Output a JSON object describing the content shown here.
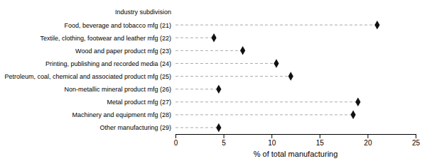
{
  "chart_data": {
    "type": "lollipop",
    "orientation": "horizontal",
    "categories": [
      "Industry subdivision",
      "Food, beverage and tobacco mfg (21)",
      "Textile, clothing, footwear and leather mfg (22)",
      "Wood and paper product mfg (23)",
      "Printing, publishing and recorded media (24)",
      "Petroleum, coal, chemical and associated product mfg (25)",
      "Non-metallic mineral product mfg (26)",
      "Metal product mfg (27)",
      "Machinery and equipment mfg (28)",
      "Other manufacturing (29)"
    ],
    "values": [
      null,
      21.0,
      4.0,
      7.0,
      10.5,
      12.0,
      4.5,
      19.0,
      18.5,
      4.5
    ],
    "xlim": [
      0,
      25
    ],
    "xticks": [
      0,
      5,
      10,
      15,
      20,
      25
    ],
    "xlabel": "% of total manufacturing",
    "color": "#111111",
    "marker": "diamond",
    "line_style": "dashed"
  }
}
